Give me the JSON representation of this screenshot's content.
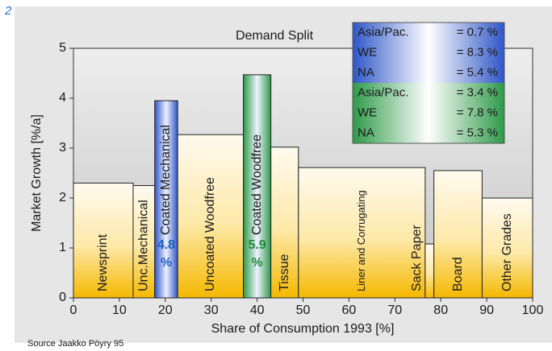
{
  "figure_label": "2",
  "source": "Source Jaakko Pöyry 95",
  "chart_data": {
    "type": "variable-width-bar",
    "title": "Demand Split",
    "x_label": "Share of Consumption 1993 [%]",
    "y_label": "Market Growth [%/a]",
    "categories": [
      "Newsprint",
      "Unc.Mechanical",
      "Coated Mechanical",
      "Uncoated Woodfree",
      "Coated Woodfree",
      "Tissue",
      "Liner and Corrugating",
      "Sack Paper",
      "Board",
      "Other Grades"
    ],
    "edges": [
      0,
      13,
      17.7,
      22.7,
      37,
      43,
      49,
      76.6,
      78.5,
      89,
      100
    ],
    "values": [
      2.3,
      2.25,
      3.95,
      3.27,
      4.47,
      3.02,
      2.61,
      1.08,
      2.55,
      2.0
    ],
    "colors": [
      "#f5b800",
      "#f5b800",
      "#2f56c8",
      "#f5b800",
      "#2e9a48",
      "#f5b800",
      "#f5b800",
      "#f5b800",
      "#f5b800",
      "#f5b800"
    ],
    "annotations": [
      {
        "category": "Coated Mechanical",
        "lines": [
          "4.8",
          "%"
        ],
        "color": "#1f5fbf"
      },
      {
        "category": "Coated Woodfree",
        "lines": [
          "5.9",
          "%"
        ],
        "color": "#1e8a3c"
      }
    ],
    "legend": [
      {
        "color": "#2f56c8",
        "rows": [
          [
            "Asia/Pac.",
            "= 0.7 %"
          ],
          [
            "WE",
            "= 8.3 %"
          ],
          [
            "NA",
            "= 5.4 %"
          ]
        ]
      },
      {
        "color": "#2e9a48",
        "rows": [
          [
            "Asia/Pac.",
            "= 3.4 %"
          ],
          [
            "WE",
            "= 7.8 %"
          ],
          [
            "NA",
            "= 5.3 %"
          ]
        ]
      }
    ],
    "xlim": [
      0,
      100
    ],
    "xticks": [
      0,
      10,
      20,
      30,
      40,
      50,
      60,
      70,
      80,
      90,
      100
    ],
    "ylim": [
      0,
      5
    ],
    "yticks": [
      0,
      1,
      2,
      3,
      4,
      5
    ]
  }
}
